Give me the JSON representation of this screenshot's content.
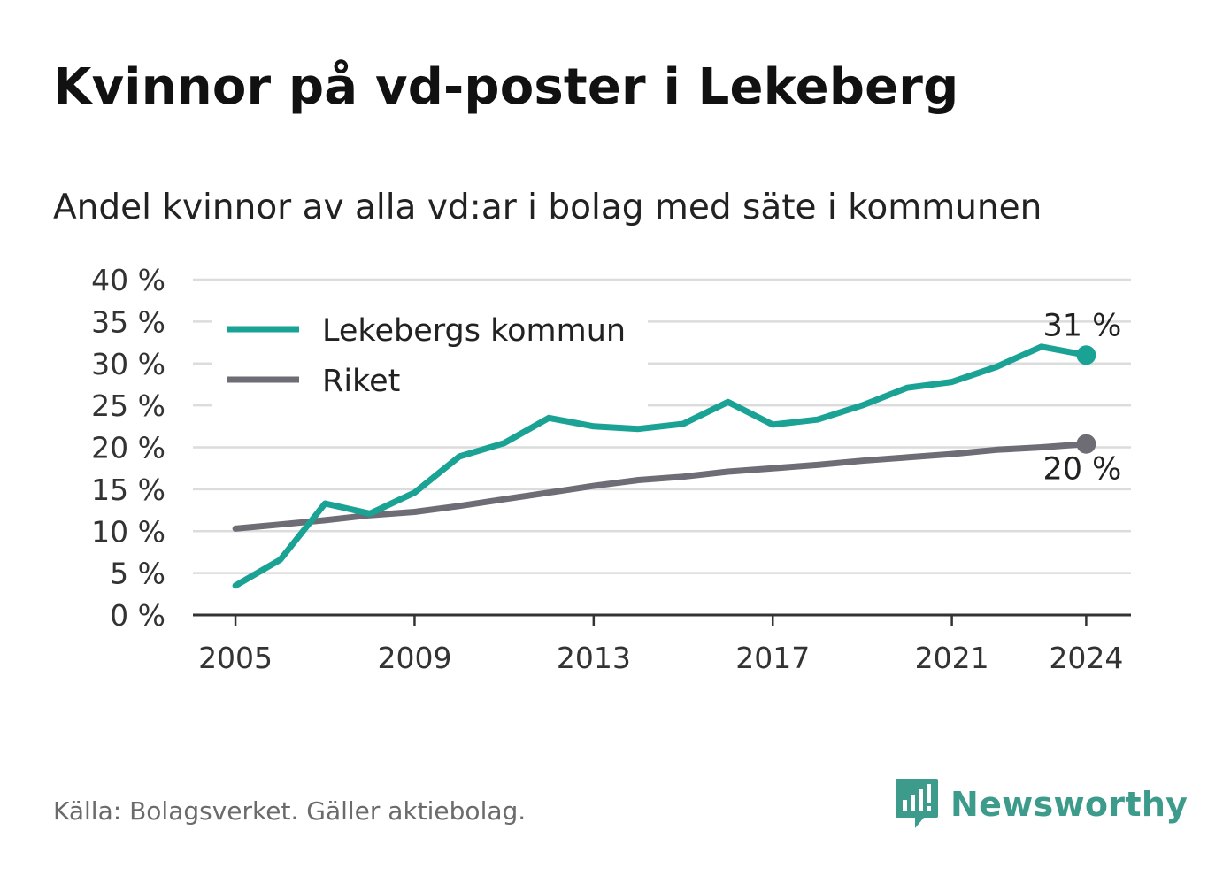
{
  "title": "Kvinnor på vd-poster i Lekeberg",
  "subtitle": "Andel kvinnor av alla vd:ar i bolag med säte i kommunen",
  "source": "Källa: Bolagsverket. Gäller aktiebolag.",
  "brand": "Newsworthy",
  "colors": {
    "lekeberg": "#1aa394",
    "riket": "#6e6d75",
    "grid": "#dcdcdc",
    "axis": "#333333"
  },
  "chart_data": {
    "type": "line",
    "x": [
      2005,
      2006,
      2007,
      2008,
      2009,
      2010,
      2011,
      2012,
      2013,
      2014,
      2015,
      2016,
      2017,
      2018,
      2019,
      2020,
      2021,
      2022,
      2023,
      2024
    ],
    "series": [
      {
        "name": "Lekebergs kommun",
        "color": "#1aa394",
        "values": [
          3.5,
          6.6,
          13.3,
          12.1,
          14.6,
          18.9,
          20.5,
          23.5,
          22.5,
          22.2,
          22.8,
          25.4,
          22.7,
          23.3,
          25.0,
          27.1,
          27.8,
          29.6,
          32.0,
          31.0
        ],
        "end_label": "31 %"
      },
      {
        "name": "Riket",
        "color": "#6e6d75",
        "values": [
          10.3,
          10.8,
          11.3,
          11.9,
          12.3,
          13.0,
          13.8,
          14.6,
          15.4,
          16.1,
          16.5,
          17.1,
          17.5,
          17.9,
          18.4,
          18.8,
          19.2,
          19.7,
          20.0,
          20.4
        ],
        "end_label": "20 %"
      }
    ],
    "ylim": [
      0,
      40
    ],
    "yticks": [
      0,
      5,
      10,
      15,
      20,
      25,
      30,
      35,
      40
    ],
    "ytick_labels": [
      "0 %",
      "5 %",
      "10 %",
      "15 %",
      "20 %",
      "25 %",
      "30 %",
      "35 %",
      "40 %"
    ],
    "xticks": [
      2005,
      2009,
      2013,
      2017,
      2021,
      2024
    ],
    "xtick_labels": [
      "2005",
      "2009",
      "2013",
      "2017",
      "2021",
      "2024"
    ],
    "xlim": [
      2004.05,
      2025
    ],
    "grid": true,
    "legend": "top-left"
  }
}
